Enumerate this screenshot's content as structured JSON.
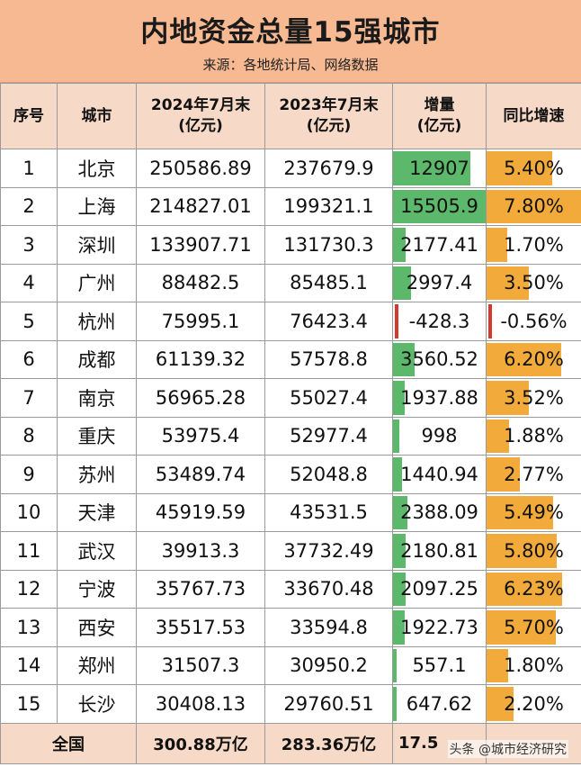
{
  "title": "内地资金总量15强城市",
  "subtitle": "来源：各地统计局、网络数据",
  "columns": [
    "序号",
    "城市",
    "2024年7月末\n(亿元)",
    "2023年7月末\n(亿元)",
    "增量\n(亿元)",
    "同比增速"
  ],
  "rows": [
    {
      "rank": "1",
      "city": "北京",
      "y2024": "250586.89",
      "y2023": "237679.9",
      "inc": "12907",
      "inc_value": 12907,
      "growth": "5.40%",
      "growth_value": 5.4
    },
    {
      "rank": "2",
      "city": "上海",
      "y2024": "214827.01",
      "y2023": "199321.1",
      "inc": "15505.9",
      "inc_value": 15505.9,
      "growth": "7.80%",
      "growth_value": 7.8
    },
    {
      "rank": "3",
      "city": "深圳",
      "y2024": "133907.71",
      "y2023": "131730.3",
      "inc": "2177.41",
      "inc_value": 2177.41,
      "growth": "1.70%",
      "growth_value": 1.7
    },
    {
      "rank": "4",
      "city": "广州",
      "y2024": "88482.5",
      "y2023": "85485.1",
      "inc": "2997.4",
      "inc_value": 2997.4,
      "growth": "3.50%",
      "growth_value": 3.5
    },
    {
      "rank": "5",
      "city": "杭州",
      "y2024": "75995.1",
      "y2023": "76423.4",
      "inc": "-428.3",
      "inc_value": -428.3,
      "growth": "-0.56%",
      "growth_value": -0.56
    },
    {
      "rank": "6",
      "city": "成都",
      "y2024": "61139.32",
      "y2023": "57578.8",
      "inc": "3560.52",
      "inc_value": 3560.52,
      "growth": "6.20%",
      "growth_value": 6.2
    },
    {
      "rank": "7",
      "city": "南京",
      "y2024": "56965.28",
      "y2023": "55027.4",
      "inc": "1937.88",
      "inc_value": 1937.88,
      "growth": "3.52%",
      "growth_value": 3.52
    },
    {
      "rank": "8",
      "city": "重庆",
      "y2024": "53975.4",
      "y2023": "52977.4",
      "inc": "998",
      "inc_value": 998,
      "growth": "1.88%",
      "growth_value": 1.88
    },
    {
      "rank": "9",
      "city": "苏州",
      "y2024": "53489.74",
      "y2023": "52048.8",
      "inc": "1440.94",
      "inc_value": 1440.94,
      "growth": "2.77%",
      "growth_value": 2.77
    },
    {
      "rank": "10",
      "city": "天津",
      "y2024": "45919.59",
      "y2023": "43531.5",
      "inc": "2388.09",
      "inc_value": 2388.09,
      "growth": "5.49%",
      "growth_value": 5.49
    },
    {
      "rank": "11",
      "city": "武汉",
      "y2024": "39913.3",
      "y2023": "37732.49",
      "inc": "2180.81",
      "inc_value": 2180.81,
      "growth": "5.80%",
      "growth_value": 5.8
    },
    {
      "rank": "12",
      "city": "宁波",
      "y2024": "35767.73",
      "y2023": "33670.48",
      "inc": "2097.25",
      "inc_value": 2097.25,
      "growth": "6.23%",
      "growth_value": 6.23
    },
    {
      "rank": "13",
      "city": "西安",
      "y2024": "35517.53",
      "y2023": "33594.8",
      "inc": "1922.73",
      "inc_value": 1922.73,
      "growth": "5.70%",
      "growth_value": 5.7
    },
    {
      "rank": "14",
      "city": "郑州",
      "y2024": "31507.3",
      "y2023": "30950.2",
      "inc": "557.1",
      "inc_value": 557.1,
      "growth": "1.80%",
      "growth_value": 1.8
    },
    {
      "rank": "15",
      "city": "长沙",
      "y2024": "30408.13",
      "y2023": "29760.51",
      "inc": "647.62",
      "inc_value": 647.62,
      "growth": "2.20%",
      "growth_value": 2.2
    }
  ],
  "total": {
    "label": "全国",
    "y2024": "300.88万亿",
    "y2023": "283.36万亿",
    "inc": "17.5",
    "growth": ""
  },
  "watermark": "头条 @城市经济研究",
  "colors": {
    "header_bg": "#f6b991",
    "thead_bg": "#f6d9c6",
    "inc_bar": "#5cb86a",
    "growth_bar": "#f2ab3a",
    "negative_bar": "#d33a2e"
  }
}
